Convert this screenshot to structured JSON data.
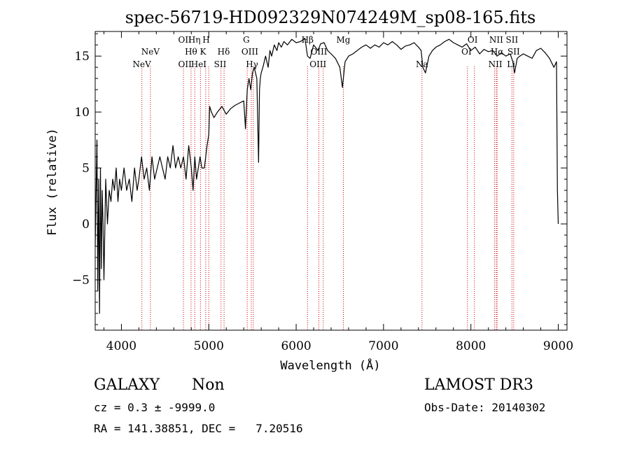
{
  "chart_data": {
    "type": "line",
    "title": "spec-56719-HD092329N074249M_sp08-165.fits",
    "xlabel": "Wavelength (Å)",
    "ylabel": "Flux (relative)",
    "xlim": [
      3700,
      9100
    ],
    "ylim": [
      -9.5,
      17.2
    ],
    "xticks": [
      4000,
      5000,
      6000,
      7000,
      8000,
      9000
    ],
    "yticks": [
      -5,
      0,
      5,
      10,
      15
    ],
    "line_color": "#000000",
    "marker_color": "#cc0000",
    "spectrum": {
      "x": [
        3700,
        3720,
        3730,
        3740,
        3750,
        3760,
        3770,
        3780,
        3790,
        3800,
        3820,
        3840,
        3860,
        3880,
        3900,
        3920,
        3940,
        3960,
        3980,
        4000,
        4030,
        4060,
        4090,
        4120,
        4150,
        4180,
        4200,
        4230,
        4260,
        4290,
        4320,
        4350,
        4380,
        4410,
        4440,
        4470,
        4500,
        4530,
        4560,
        4590,
        4620,
        4650,
        4680,
        4710,
        4740,
        4770,
        4800,
        4820,
        4840,
        4860,
        4880,
        4900,
        4920,
        4950,
        4980,
        5000,
        5010,
        5030,
        5060,
        5100,
        5150,
        5200,
        5250,
        5300,
        5350,
        5400,
        5420,
        5440,
        5460,
        5480,
        5500,
        5520,
        5550,
        5570,
        5580,
        5590,
        5600,
        5620,
        5650,
        5680,
        5700,
        5720,
        5750,
        5780,
        5800,
        5830,
        5860,
        5900,
        5950,
        6000,
        6050,
        6100,
        6130,
        6160,
        6200,
        6250,
        6280,
        6320,
        6360,
        6400,
        6450,
        6500,
        6530,
        6560,
        6600,
        6650,
        6700,
        6750,
        6800,
        6850,
        6900,
        6950,
        7000,
        7050,
        7100,
        7150,
        7200,
        7250,
        7300,
        7350,
        7400,
        7430,
        7450,
        7480,
        7520,
        7560,
        7600,
        7650,
        7700,
        7750,
        7800,
        7850,
        7900,
        7950,
        8000,
        8050,
        8100,
        8150,
        8200,
        8250,
        8300,
        8350,
        8400,
        8450,
        8480,
        8500,
        8530,
        8560,
        8600,
        8650,
        8700,
        8750,
        8800,
        8850,
        8900,
        8950,
        8980,
        8990,
        9000
      ],
      "y": [
        -2,
        7.5,
        -6,
        4,
        -8,
        5,
        -4,
        3,
        0,
        -5,
        4,
        0,
        3,
        2,
        4,
        3,
        5,
        2,
        4,
        3,
        5,
        3,
        4,
        2,
        5,
        3,
        4,
        6,
        4,
        5,
        3,
        6,
        4,
        5,
        6,
        5,
        4,
        6,
        5,
        7,
        5,
        6,
        5,
        6,
        4,
        7,
        5,
        3,
        6,
        4,
        5,
        6,
        5,
        5,
        7,
        8,
        10.5,
        10,
        9.5,
        10,
        10.5,
        9.8,
        10.3,
        10.6,
        10.8,
        11,
        8.5,
        12,
        13,
        12,
        13.5,
        14,
        13,
        5.5,
        12,
        13,
        13.5,
        14,
        15,
        14,
        15.5,
        15,
        16,
        15.5,
        16.2,
        15.8,
        16.3,
        16,
        16.5,
        16.2,
        16.3,
        16.6,
        15,
        14.8,
        16,
        15.5,
        16.1,
        16.2,
        15.5,
        15.2,
        14.8,
        14,
        12.2,
        14.5,
        15,
        15.2,
        15.5,
        15.8,
        16,
        15.7,
        16,
        15.8,
        16.2,
        16,
        16.3,
        16,
        15.6,
        15.9,
        16,
        16.2,
        15.8,
        15.5,
        14,
        13.5,
        15,
        15.5,
        15.8,
        16,
        16.3,
        16.5,
        16.2,
        16,
        15.8,
        16.1,
        15.5,
        15.8,
        15.2,
        15.6,
        15.4,
        15.5,
        15,
        15.3,
        15,
        15.2,
        14.5,
        13.5,
        14.8,
        15,
        15.2,
        15,
        14.8,
        15.5,
        15.7,
        15.3,
        14.8,
        14,
        14.5,
        3,
        0
      ]
    },
    "lines": [
      {
        "label": "NeV",
        "wl": 4234,
        "row": 2
      },
      {
        "label": "NeV",
        "wl": 4332,
        "row": 1
      },
      {
        "label": "OII",
        "wl": 4727,
        "row": 0
      },
      {
        "label": "OII",
        "wl": 4727,
        "row": 2
      },
      {
        "label": "Hθ",
        "wl": 4797,
        "row": 1
      },
      {
        "label": "Hη",
        "wl": 4835,
        "row": 0
      },
      {
        "label": "HeI",
        "wl": 4885,
        "row": 2
      },
      {
        "label": "K",
        "wl": 4934,
        "row": 1
      },
      {
        "label": "H",
        "wl": 4970,
        "row": 0
      },
      {
        "label": "SII",
        "wl": 5130,
        "row": 2
      },
      {
        "label": "Hδ",
        "wl": 5170,
        "row": 1
      },
      {
        "label": "G",
        "wl": 5430,
        "row": 0
      },
      {
        "label": "OIII",
        "wl": 5470,
        "row": 1
      },
      {
        "label": "Hγ",
        "wl": 5495,
        "row": 2
      },
      {
        "label": "Hβ",
        "wl": 6130,
        "row": 0
      },
      {
        "label": "OIII",
        "wl": 6260,
        "row": 1
      },
      {
        "label": "OIII",
        "wl": 6250,
        "row": 2
      },
      {
        "label": "Mg",
        "wl": 6540,
        "row": 0
      },
      {
        "label": "Na",
        "wl": 7440,
        "row": 2
      },
      {
        "label": "OI",
        "wl": 8020,
        "row": 0
      },
      {
        "label": "OI",
        "wl": 7950,
        "row": 1
      },
      {
        "label": "NII",
        "wl": 8290,
        "row": 0
      },
      {
        "label": "Hα",
        "wl": 8300,
        "row": 1
      },
      {
        "label": "NII",
        "wl": 8280,
        "row": 2
      },
      {
        "label": "SII",
        "wl": 8470,
        "row": 0
      },
      {
        "label": "SII",
        "wl": 8490,
        "row": 1
      },
      {
        "label": "Li",
        "wl": 8460,
        "row": 2
      }
    ],
    "line_positions": [
      4234,
      4332,
      4710,
      4797,
      4840,
      4905,
      4965,
      5000,
      5140,
      5175,
      5440,
      5487,
      5510,
      6130,
      6260,
      6310,
      6540,
      7440,
      7960,
      8040,
      8270,
      8290,
      8300,
      8470,
      8490
    ]
  },
  "info": {
    "class_label": "GALAXY",
    "subclass": "Non",
    "survey": "LAMOST DR3",
    "cz_line": "cz = 0.3 ± -9999.0",
    "obs_date": "Obs-Date: 20140302",
    "radec": "RA = 141.38851, DEC =   7.20516"
  }
}
